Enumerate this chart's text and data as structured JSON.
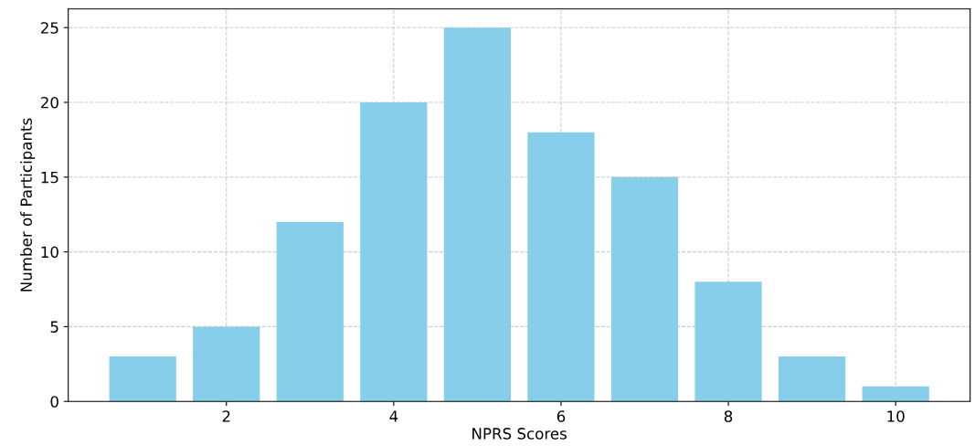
{
  "chart_data": {
    "type": "bar",
    "xlabel": "NPRS Scores",
    "ylabel": "Number of Participants",
    "x": [
      1,
      2,
      3,
      4,
      5,
      6,
      7,
      8,
      9,
      10
    ],
    "values": [
      3,
      5,
      12,
      20,
      25,
      18,
      15,
      8,
      3,
      1
    ],
    "color": "#87ceeb",
    "xlim": [
      0.11,
      10.89
    ],
    "xticks": [
      2,
      4,
      6,
      8,
      10
    ],
    "ylim": [
      0,
      26.25
    ],
    "yticks": [
      0,
      5,
      10,
      15,
      20,
      25
    ],
    "grid": true,
    "legend": false
  }
}
